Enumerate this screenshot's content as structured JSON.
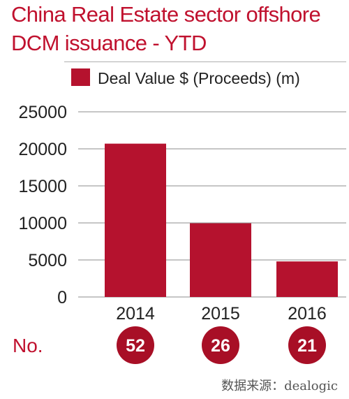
{
  "title_lines": [
    "China Real Estate sector offshore",
    "DCM issuance - YTD"
  ],
  "source": "数据来源：dealogic",
  "colors": {
    "bar": "#b5122e",
    "title": "#c0112e",
    "badge": "#a80f26",
    "text": "#222222"
  },
  "chart_data": {
    "type": "bar",
    "categories": [
      "2014",
      "2015",
      "2016"
    ],
    "series": [
      {
        "name": "Deal Value $ (Proceeds) (m)",
        "values": [
          20700,
          9950,
          4800
        ]
      }
    ],
    "ylim": [
      0,
      25000
    ],
    "yticks": [
      0,
      5000,
      10000,
      15000,
      20000,
      25000
    ],
    "grid": true,
    "legend": "top-right",
    "count_label": "No.",
    "counts": [
      "52",
      "26",
      "21"
    ]
  }
}
